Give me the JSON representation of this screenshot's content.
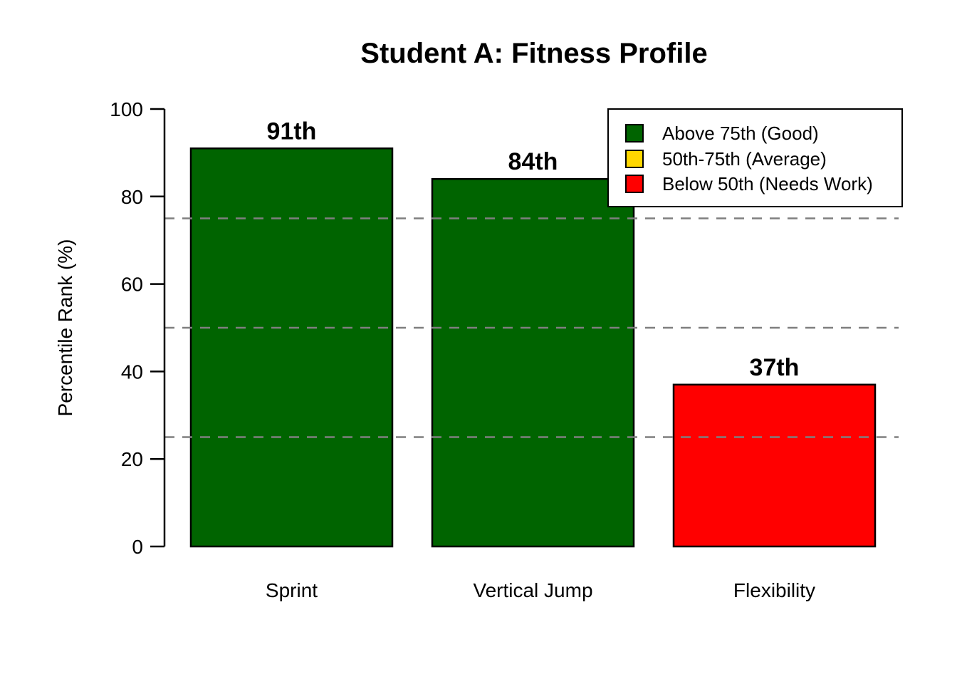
{
  "title": "Student A: Fitness Profile",
  "chart_data": {
    "type": "bar",
    "title": "Student A: Fitness Profile",
    "xlabel": "",
    "ylabel": "Percentile Rank (%)",
    "categories": [
      "Sprint",
      "Vertical Jump",
      "Flexibility"
    ],
    "values": [
      91,
      84,
      37
    ],
    "bar_labels": [
      "91th",
      "84th",
      "37th"
    ],
    "bar_colors": [
      "#006400",
      "#006400",
      "#FF0000"
    ],
    "bar_border_color": "#000000",
    "ylim": [
      0,
      100
    ],
    "yticks": [
      0,
      20,
      40,
      60,
      80,
      100
    ],
    "grid": false,
    "reference_lines": [
      25,
      50,
      75
    ],
    "reference_line_style": "dashed",
    "reference_line_color": "#7F7F7F",
    "legend": {
      "position": "top-right",
      "items": [
        {
          "label": "Above 75th (Good)",
          "color": "#006400"
        },
        {
          "label": "50th-75th (Average)",
          "color": "#FFD700"
        },
        {
          "label": "Below 50th (Needs Work)",
          "color": "#FF0000"
        }
      ]
    },
    "background_color": "#FFFFFF"
  }
}
